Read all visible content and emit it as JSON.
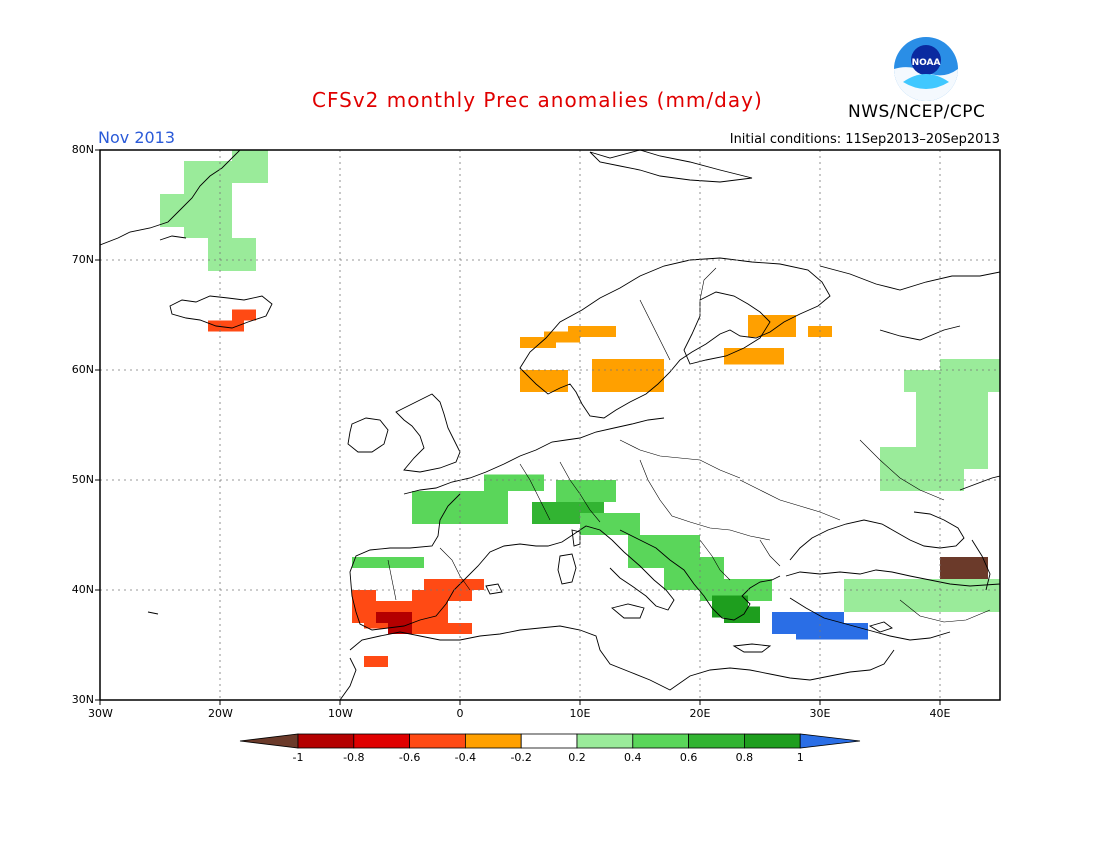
{
  "title": "CFSv2 monthly Prec anomalies (mm/day)",
  "agency": "NWS/NCEP/CPC",
  "logo_text": "NOAA",
  "month": "Nov 2013",
  "initial_conditions": "Initial conditions: 11Sep2013–20Sep2013",
  "colors": {
    "title": "#e00000",
    "month": "#2a5ad8",
    "level_below_-1": "#6b3a2a",
    "level_-1_-0.8": "#b40000",
    "level_-0.8_-0.6": "#e00000",
    "level_-0.6_-0.4": "#ff4a14",
    "level_-0.4_-0.2": "#ffa000",
    "level_-0.2_0.2": "#ffffff",
    "level_0.2_0.4": "#9aeb9a",
    "level_0.4_0.6": "#5ad65a",
    "level_0.6_0.8": "#32b432",
    "level_0.8_1": "#1e9e1e",
    "level_above_1": "#2a6ee6"
  },
  "colorbar": {
    "ticks": [
      "-1",
      "-0.8",
      "-0.6",
      "-0.4",
      "-0.2",
      "0.2",
      "0.4",
      "0.6",
      "0.8",
      "1"
    ]
  },
  "axes": {
    "lat_labels": [
      "80N",
      "70N",
      "60N",
      "50N",
      "40N",
      "30N"
    ],
    "lon_labels": [
      "30W",
      "20W",
      "10W",
      "0",
      "10E",
      "20E",
      "30E",
      "40E"
    ],
    "lat_range": [
      30,
      80
    ],
    "lon_range": [
      -30,
      45
    ],
    "grid": "dotted"
  },
  "anomaly_regions": [
    {
      "region": "Greenland coast",
      "level": 0.3
    },
    {
      "region": "Iceland south",
      "level": -0.5
    },
    {
      "region": "Southwest Norway",
      "level": -0.3
    },
    {
      "region": "Southern Sweden",
      "level": -0.4
    },
    {
      "region": "Northern Finland",
      "level": -0.3
    },
    {
      "region": "Iberia south",
      "level": -0.6
    },
    {
      "region": "Southern Spain",
      "level": -0.9
    },
    {
      "region": "Alps",
      "level": 0.6
    },
    {
      "region": "Balkans",
      "level": 0.5
    },
    {
      "region": "Southern Greece",
      "level": 0.9
    },
    {
      "region": "Western Turkey",
      "level": 1.1
    },
    {
      "region": "Caucasus",
      "level": -1.1
    },
    {
      "region": "Western Russia",
      "level": 0.3
    }
  ]
}
